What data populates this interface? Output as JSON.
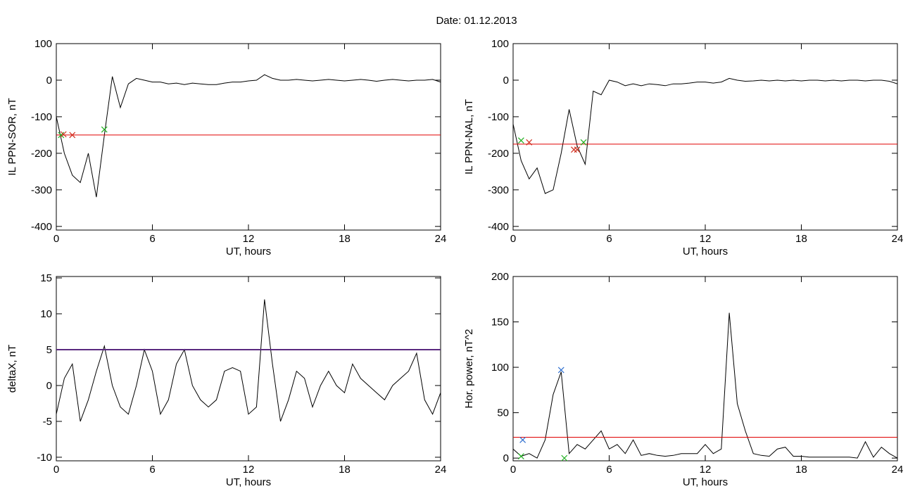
{
  "title": "Date:  01.12.2013",
  "chart_data": [
    {
      "type": "line",
      "ylabel": "IL PPN-SOR, nT",
      "xlabel": "UT, hours",
      "color": "#000000",
      "xlim": [
        0,
        24
      ],
      "xticks": [
        0,
        6,
        12,
        18,
        24
      ],
      "ylim": [
        -410,
        100
      ],
      "yticks": [
        100,
        0,
        -100,
        -200,
        -300,
        -400
      ],
      "x": [
        0,
        0.5,
        1,
        1.5,
        2,
        2.5,
        3,
        3.5,
        4,
        4.5,
        5,
        5.5,
        6,
        6.5,
        7,
        7.5,
        8,
        8.5,
        9,
        9.5,
        10,
        10.5,
        11,
        11.5,
        12,
        12.5,
        13,
        13.5,
        14,
        14.5,
        15,
        15.5,
        16,
        16.5,
        17,
        17.5,
        18,
        18.5,
        19,
        19.5,
        20,
        20.5,
        21,
        21.5,
        22,
        22.5,
        23,
        23.5,
        24
      ],
      "values": [
        -100,
        -200,
        -260,
        -280,
        -200,
        -320,
        -150,
        10,
        -75,
        -10,
        5,
        0,
        -5,
        -5,
        -10,
        -8,
        -12,
        -8,
        -10,
        -12,
        -12,
        -8,
        -5,
        -5,
        -2,
        0,
        15,
        5,
        0,
        0,
        2,
        0,
        -2,
        0,
        2,
        0,
        -2,
        0,
        2,
        0,
        -3,
        0,
        2,
        0,
        -2,
        0,
        0,
        2,
        -5
      ],
      "threshold": {
        "value": -150,
        "color": "#e00000"
      },
      "markers": [
        {
          "color": "#20b020",
          "x": [
            0.3,
            3
          ],
          "y": [
            -150,
            -135
          ]
        },
        {
          "color": "#d03020",
          "x": [
            0.45,
            1
          ],
          "y": [
            -148,
            -150
          ]
        }
      ]
    },
    {
      "type": "line",
      "ylabel": "IL PPN-NAL, nT",
      "xlabel": "UT, hours",
      "color": "#000000",
      "xlim": [
        0,
        24
      ],
      "xticks": [
        0,
        6,
        12,
        18,
        24
      ],
      "ylim": [
        -410,
        100
      ],
      "yticks": [
        100,
        0,
        -100,
        -200,
        -300,
        -400
      ],
      "x": [
        0,
        0.5,
        1,
        1.5,
        2,
        2.5,
        3,
        3.5,
        4,
        4.5,
        5,
        5.5,
        6,
        6.5,
        7,
        7.5,
        8,
        8.5,
        9,
        9.5,
        10,
        10.5,
        11,
        11.5,
        12,
        12.5,
        13,
        13.5,
        14,
        14.5,
        15,
        15.5,
        16,
        16.5,
        17,
        17.5,
        18,
        18.5,
        19,
        19.5,
        20,
        20.5,
        21,
        21.5,
        22,
        22.5,
        23,
        23.5,
        24
      ],
      "values": [
        -120,
        -220,
        -270,
        -240,
        -310,
        -300,
        -200,
        -80,
        -180,
        -230,
        -30,
        -40,
        0,
        -5,
        -15,
        -10,
        -15,
        -10,
        -12,
        -15,
        -10,
        -10,
        -8,
        -5,
        -5,
        -8,
        -5,
        5,
        0,
        -3,
        -2,
        0,
        -2,
        0,
        -2,
        0,
        -2,
        0,
        0,
        -2,
        0,
        -2,
        0,
        0,
        -2,
        0,
        0,
        -3,
        -10
      ],
      "threshold": {
        "value": -175,
        "color": "#e00000"
      },
      "markers": [
        {
          "color": "#d03020",
          "x": [
            1,
            3.8,
            4
          ],
          "y": [
            -170,
            -190,
            -190
          ]
        },
        {
          "color": "#20b020",
          "x": [
            0.5,
            4.4
          ],
          "y": [
            -165,
            -170
          ]
        }
      ]
    },
    {
      "type": "line",
      "ylabel": "deltaX, nT",
      "xlabel": "UT, hours",
      "color": "#000000",
      "xlim": [
        0,
        24
      ],
      "xticks": [
        0,
        6,
        12,
        18,
        24
      ],
      "ylim": [
        -10.5,
        15.2
      ],
      "yticks": [
        15,
        10,
        5,
        0,
        -5,
        -10
      ],
      "x": [
        0,
        0.5,
        1,
        1.5,
        2,
        2.5,
        3,
        3.5,
        4,
        4.5,
        5,
        5.5,
        6,
        6.5,
        7,
        7.5,
        8,
        8.5,
        9,
        9.5,
        10,
        10.5,
        11,
        11.5,
        12,
        12.5,
        13,
        13.5,
        14,
        14.5,
        15,
        15.5,
        16,
        16.5,
        17,
        17.5,
        18,
        18.5,
        19,
        19.5,
        20,
        20.5,
        21,
        21.5,
        22,
        22.5,
        23,
        23.5,
        24
      ],
      "values": [
        -4,
        1,
        3,
        -5,
        -2,
        2,
        5.5,
        0,
        -3,
        -4,
        0,
        5,
        2,
        -4,
        -2,
        3,
        5,
        0,
        -2,
        -3,
        -2,
        2,
        2.5,
        2,
        -4,
        -3,
        12,
        3,
        -5,
        -2,
        2,
        1,
        -3,
        0,
        2,
        0,
        -1,
        3,
        1,
        0,
        -1,
        -2,
        0,
        1,
        2,
        4.5,
        -2,
        -4,
        -1
      ],
      "threshold": {
        "value": 5,
        "color": "#5a2a80"
      },
      "markers": []
    },
    {
      "type": "line",
      "ylabel": "Hor. power, nT^2",
      "xlabel": "UT, hours",
      "color": "#000000",
      "xlim": [
        0,
        24
      ],
      "xticks": [
        0,
        6,
        12,
        18,
        24
      ],
      "ylim": [
        -3,
        200
      ],
      "yticks": [
        200,
        150,
        100,
        50,
        0
      ],
      "x": [
        0,
        0.5,
        1,
        1.5,
        2,
        2.5,
        3,
        3.5,
        4,
        4.5,
        5,
        5.5,
        6,
        6.5,
        7,
        7.5,
        8,
        8.5,
        9,
        9.5,
        10,
        10.5,
        11,
        11.5,
        12,
        12.5,
        13,
        13.5,
        14,
        14.5,
        15,
        15.5,
        16,
        16.5,
        17,
        17.5,
        18,
        18.5,
        19,
        19.5,
        20,
        20.5,
        21,
        21.5,
        22,
        22.5,
        23,
        23.5,
        24
      ],
      "values": [
        10,
        2,
        5,
        0,
        20,
        70,
        95,
        5,
        15,
        10,
        20,
        30,
        10,
        15,
        5,
        20,
        3,
        5,
        3,
        2,
        3,
        5,
        5,
        5,
        15,
        5,
        10,
        160,
        60,
        30,
        5,
        3,
        2,
        10,
        12,
        2,
        2,
        1,
        1,
        1,
        1,
        1,
        1,
        0,
        18,
        1,
        12,
        5,
        0
      ],
      "threshold": {
        "value": 23,
        "color": "#e00000"
      },
      "markers": [
        {
          "color": "#3070d0",
          "x": [
            0.6,
            3
          ],
          "y": [
            20,
            97
          ]
        },
        {
          "color": "#20b020",
          "x": [
            0.5,
            3.2
          ],
          "y": [
            2,
            0
          ]
        }
      ]
    }
  ]
}
